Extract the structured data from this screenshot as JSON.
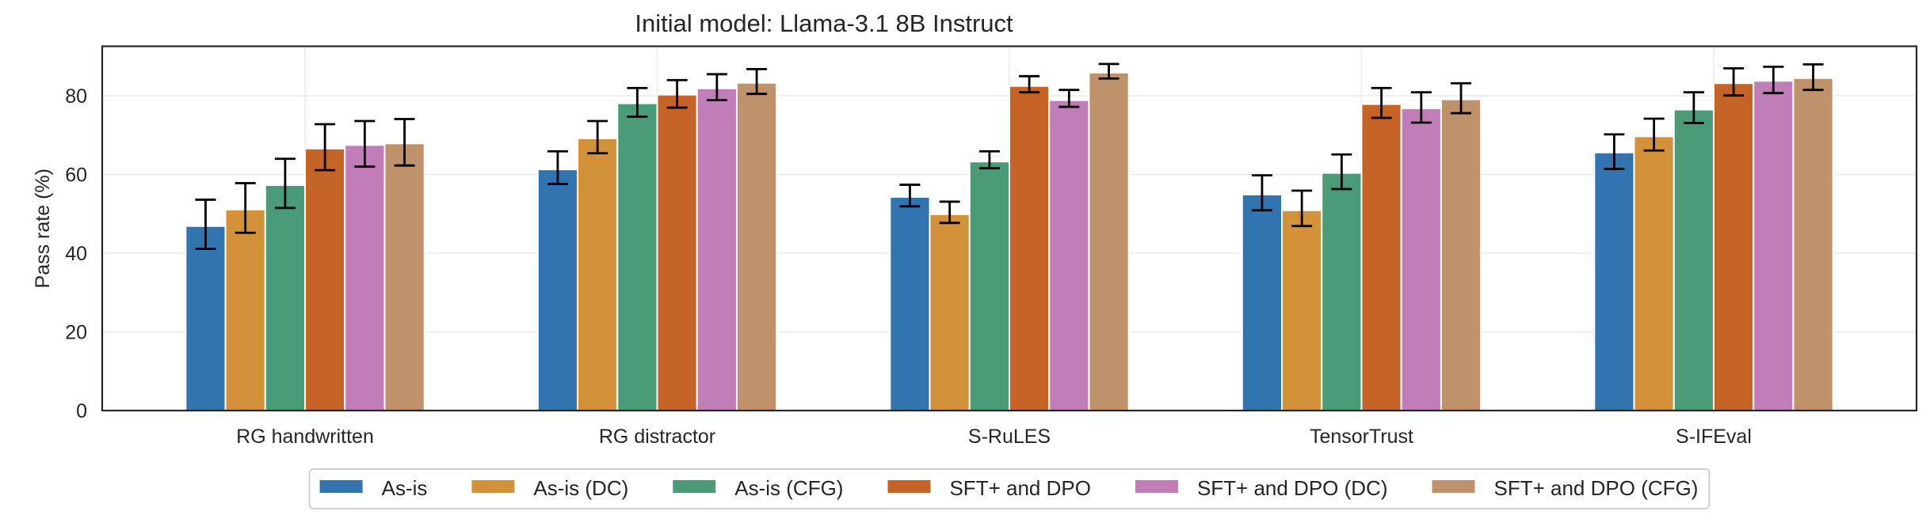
{
  "chart_data": {
    "type": "bar",
    "title": "Initial model: Llama-3.1 8B Instruct",
    "xlabel": "",
    "ylabel": "Pass rate (%)",
    "ylim": [
      0,
      92.6
    ],
    "yticks": [
      0,
      20,
      40,
      60,
      80
    ],
    "grid": true,
    "legend_position": "bottom-center (outside, single row)",
    "categories": [
      "RG handwritten",
      "RG distractor",
      "S-RuLES",
      "TensorTrust",
      "S-IFEval"
    ],
    "series": [
      {
        "name": "As-is",
        "color": "#3274b0",
        "values": [
          46.9,
          61.3,
          54.3,
          54.9,
          65.6
        ],
        "err_low": [
          41.1,
          57.6,
          51.9,
          50.9,
          61.4
        ],
        "err_high": [
          53.6,
          65.9,
          57.4,
          59.8,
          70.2
        ]
      },
      {
        "name": "As-is (DC)",
        "color": "#d3913a",
        "values": [
          51.1,
          69.2,
          49.9,
          50.9,
          69.7
        ],
        "err_low": [
          45.2,
          65.4,
          47.7,
          46.9,
          66.1
        ],
        "err_high": [
          57.8,
          73.6,
          53.1,
          55.9,
          74.2
        ]
      },
      {
        "name": "As-is (CFG)",
        "color": "#4a9c78",
        "values": [
          57.3,
          78.1,
          63.3,
          60.4,
          76.5
        ],
        "err_low": [
          51.5,
          74.7,
          61.6,
          56.3,
          73.1
        ],
        "err_high": [
          64.0,
          82.0,
          65.9,
          65.1,
          80.9
        ]
      },
      {
        "name": "SFT+ and DPO",
        "color": "#c66428",
        "values": [
          66.6,
          80.3,
          82.5,
          77.9,
          83.2
        ],
        "err_low": [
          61.1,
          77.0,
          80.9,
          74.4,
          80.1
        ],
        "err_high": [
          72.8,
          84.0,
          85.0,
          82.0,
          87.0
        ]
      },
      {
        "name": "SFT+ and DPO (DC)",
        "color": "#c07db8",
        "values": [
          67.5,
          81.9,
          78.9,
          76.8,
          83.8
        ],
        "err_low": [
          62.0,
          78.9,
          77.2,
          73.2,
          80.7
        ],
        "err_high": [
          73.6,
          85.5,
          81.5,
          80.9,
          87.4
        ]
      },
      {
        "name": "SFT+ and DPO (CFG)",
        "color": "#c0926b",
        "values": [
          67.9,
          83.3,
          85.9,
          79.1,
          84.5
        ],
        "err_low": [
          62.3,
          80.5,
          84.4,
          75.6,
          81.5
        ],
        "err_high": [
          74.1,
          86.8,
          88.1,
          83.2,
          88.0
        ]
      }
    ]
  }
}
